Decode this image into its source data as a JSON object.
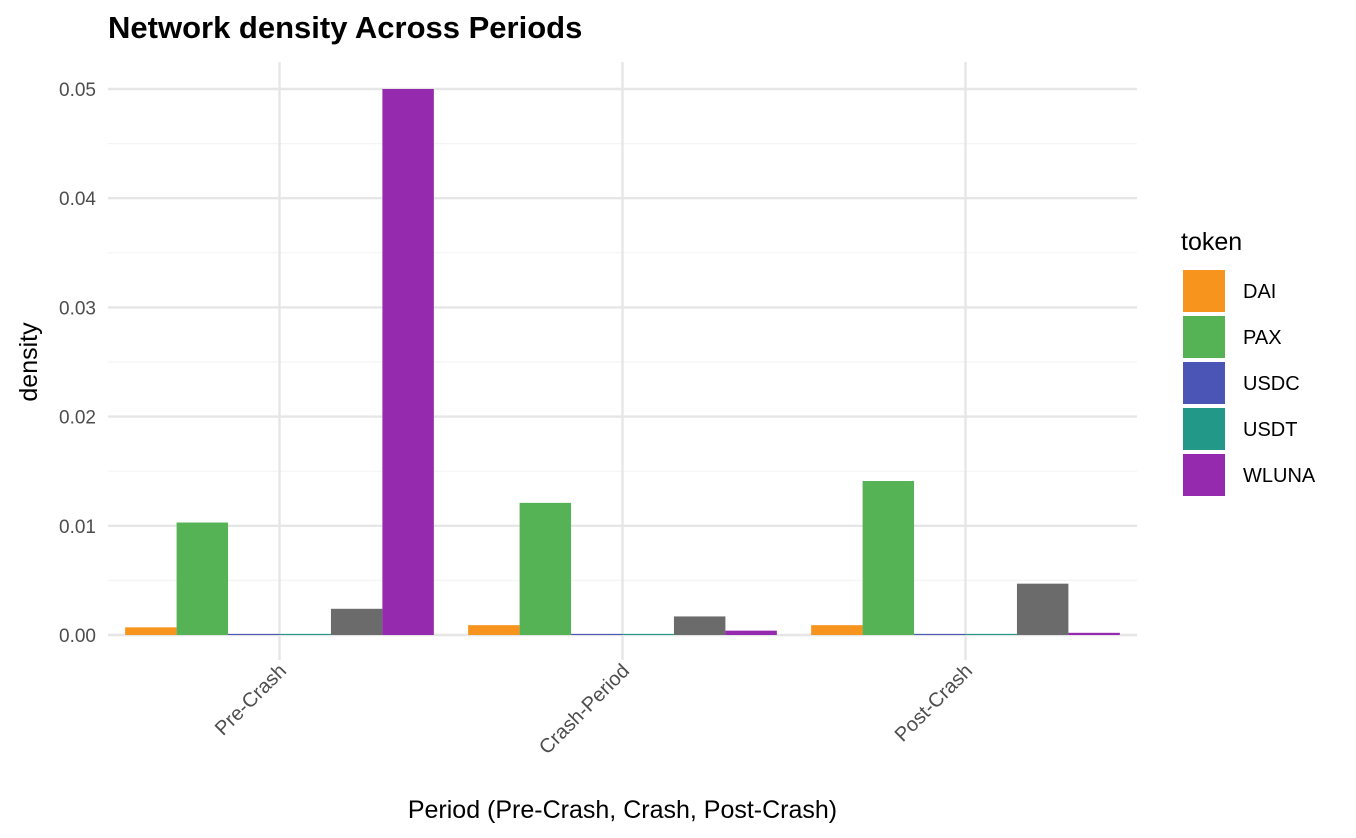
{
  "chart_data": {
    "type": "bar",
    "title": "Network density Across Periods",
    "xlabel": "Period (Pre-Crash, Crash, Post-Crash)",
    "ylabel": "density",
    "categories": [
      "Pre-Crash",
      "Crash-Period",
      "Post-Crash"
    ],
    "ylim": [
      0,
      0.05
    ],
    "yticks": [
      "0.00",
      "0.01",
      "0.02",
      "0.03",
      "0.04",
      "0.05"
    ],
    "ytick_values": [
      0,
      0.01,
      0.02,
      0.03,
      0.04,
      0.05
    ],
    "grid": true,
    "legend_title": "token",
    "legend_position": "right",
    "series": [
      {
        "name": "DAI",
        "color": "#F7941D",
        "values": [
          0.0007,
          0.0009,
          0.0009
        ]
      },
      {
        "name": "PAX",
        "color": "#55B255",
        "values": [
          0.0103,
          0.0121,
          0.0141
        ]
      },
      {
        "name": "USDC",
        "color": "#4A55B5",
        "values": [
          0.0001,
          0.0001,
          0.0001
        ]
      },
      {
        "name": "USDT",
        "color": "#229988",
        "values": [
          0.0001,
          0.0001,
          0.0001
        ]
      },
      {
        "name": "",
        "color": "#6B6B6B",
        "values": [
          0.0024,
          0.0017,
          0.0047
        ]
      },
      {
        "name": "WLUNA",
        "color": "#962AAE",
        "values": [
          0.05,
          0.0004,
          0.0002
        ]
      }
    ]
  }
}
